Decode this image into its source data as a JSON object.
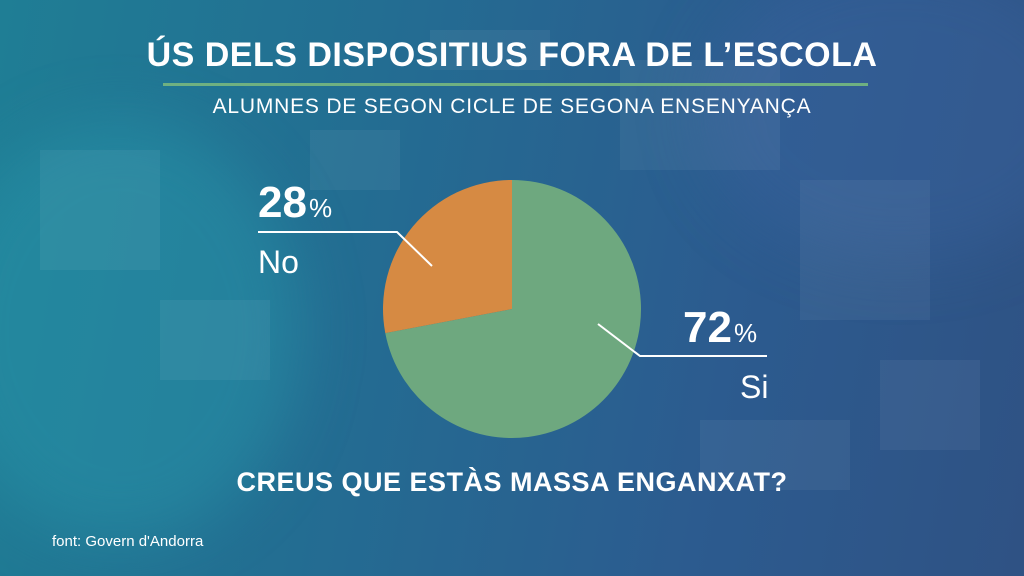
{
  "header": {
    "title": "ÚS DELS DISPOSITIUS FORA DE L’ESCOLA",
    "subtitle": "ALUMNES DE SEGON CICLE DE SEGONA ENSENYANÇA"
  },
  "chart_data": {
    "type": "pie",
    "slices": [
      {
        "label": "No",
        "value": 28,
        "value_label": "28",
        "color": "#d68a43"
      },
      {
        "label": "Si",
        "value": 72,
        "value_label": "72",
        "color": "#6ea87f"
      }
    ],
    "unit": "%",
    "grid": false,
    "legend": "none"
  },
  "question": "CREUS QUE ESTÀS MASSA ENGANXAT?",
  "source": "font: Govern d'Andorra",
  "colors": {
    "accent_rule": "#6fb081",
    "text": "#ffffff"
  }
}
